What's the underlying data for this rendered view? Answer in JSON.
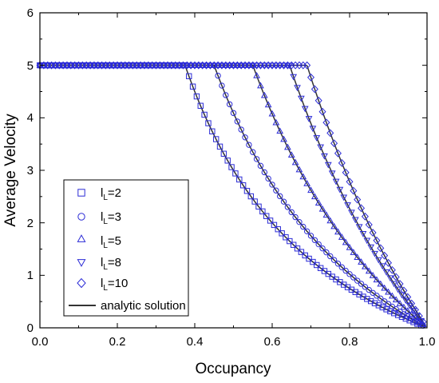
{
  "chart_data": {
    "type": "scatter",
    "xlabel": "Occupancy",
    "ylabel": "Average Velocity",
    "xlim": [
      0.0,
      1.0
    ],
    "ylim": [
      0,
      6
    ],
    "x_ticks": [
      "0.0",
      "0.2",
      "0.4",
      "0.6",
      "0.8",
      "1.0"
    ],
    "y_ticks": [
      "0",
      "1",
      "2",
      "3",
      "4",
      "5",
      "6"
    ],
    "grid": false,
    "legend_placement": "bottom-left",
    "vmax": 5,
    "marker_color": "#2b2bd6",
    "line_color": "#333333",
    "series": [
      {
        "legend_prefix": "l",
        "legend_sub": "L",
        "legend_suffix": "=2",
        "marker": "square",
        "lL": 2,
        "critical_occupancy": 0.375
      },
      {
        "legend_prefix": "l",
        "legend_sub": "L",
        "legend_suffix": "=3",
        "marker": "circle",
        "lL": 3,
        "critical_occupancy": 0.45
      },
      {
        "legend_prefix": "l",
        "legend_sub": "L",
        "legend_suffix": "=5",
        "marker": "triangle-up",
        "lL": 5,
        "critical_occupancy": 0.55
      },
      {
        "legend_prefix": "l",
        "legend_sub": "L",
        "legend_suffix": "=8",
        "marker": "triangle-down",
        "lL": 8,
        "critical_occupancy": 0.645
      },
      {
        "legend_prefix": "l",
        "legend_sub": "L",
        "legend_suffix": "=10",
        "marker": "diamond",
        "lL": 10,
        "critical_occupancy": 0.69
      }
    ],
    "analytic_line": {
      "name": "analytic solution"
    }
  }
}
